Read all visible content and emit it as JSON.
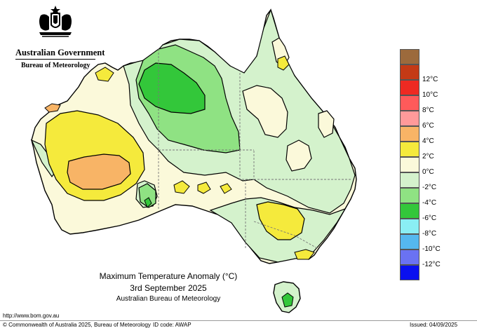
{
  "header": {
    "government": "Australian Government",
    "agency": "Bureau of Meteorology"
  },
  "map": {
    "title": "Maximum Temperature Anomaly (°C)",
    "date": "3rd September 2025",
    "source": "Australian Bureau of Meteorology",
    "colors": {
      "land_neutral": "#fbf9da",
      "ocean": "#ffffff",
      "state_border": "#777777",
      "contour": "#000000"
    }
  },
  "legend": {
    "items": [
      {
        "label": "",
        "color": "#9c6a3c"
      },
      {
        "label": "12°C",
        "color": "#c43a16"
      },
      {
        "label": "10°C",
        "color": "#ee2a22"
      },
      {
        "label": "8°C",
        "color": "#ff5a5a"
      },
      {
        "label": "6°C",
        "color": "#ff9a9a"
      },
      {
        "label": "4°C",
        "color": "#f8b466"
      },
      {
        "label": "2°C",
        "color": "#f5ea3c"
      },
      {
        "label": "0°C",
        "color": "#fbf9da"
      },
      {
        "label": "-2°C",
        "color": "#d4f2cc"
      },
      {
        "label": "-4°C",
        "color": "#8fe283"
      },
      {
        "label": "-6°C",
        "color": "#33c73a"
      },
      {
        "label": "-8°C",
        "color": "#8aeef4"
      },
      {
        "label": "-10°C",
        "color": "#55b8ef"
      },
      {
        "label": "-12°C",
        "color": "#6a72f2"
      },
      {
        "label": "",
        "color": "#0a10f0"
      }
    ]
  },
  "footer": {
    "url": "http://www.bom.gov.au",
    "copyright": "© Commonwealth of Australia 2025, Bureau of Meteorology",
    "id_code": "ID code: AWAP",
    "issued": "Issued: 04/09/2025"
  }
}
